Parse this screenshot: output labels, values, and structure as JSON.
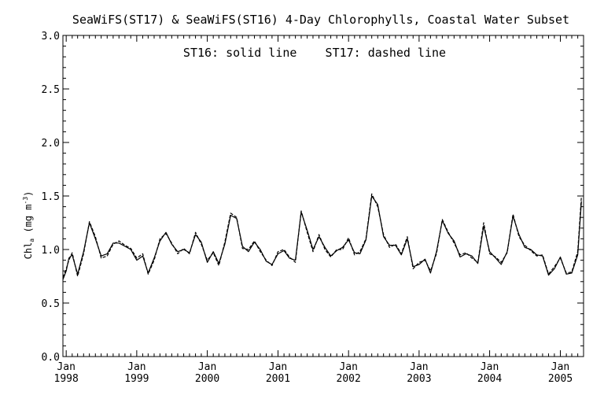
{
  "chart_data": {
    "type": "line",
    "title": "SeaWiFS(ST17) & SeaWiFS(ST16) 4-Day Chlorophylls, Coastal Water Subset",
    "annotation": "ST16: solid line    ST17: dashed line",
    "ylabel": "Chl_a (mg m^-3)",
    "ylim": [
      0.0,
      3.0
    ],
    "xlim": [
      "1997-12-15",
      "2005-05-01"
    ],
    "y_ticks": [
      "0.0",
      "0.5",
      "1.0",
      "1.5",
      "2.0",
      "2.5",
      "3.0"
    ],
    "x_ticks": [
      {
        "month": "Jan",
        "year": "1998",
        "date": "1998-01-01"
      },
      {
        "month": "Jan",
        "year": "1999",
        "date": "1999-01-01"
      },
      {
        "month": "Jan",
        "year": "2000",
        "date": "2000-01-01"
      },
      {
        "month": "Jan",
        "year": "2001",
        "date": "2001-01-01"
      },
      {
        "month": "Jan",
        "year": "2002",
        "date": "2002-01-01"
      },
      {
        "month": "Jan",
        "year": "2003",
        "date": "2003-01-01"
      },
      {
        "month": "Jan",
        "year": "2004",
        "date": "2004-01-01"
      },
      {
        "month": "Jan",
        "year": "2005",
        "date": "2005-01-01"
      }
    ],
    "series": [
      {
        "name": "ST16",
        "style": "solid",
        "points": [
          [
            "1997-12-15",
            0.72
          ],
          [
            "1998-01-01",
            0.8
          ],
          [
            "1998-01-15",
            0.92
          ],
          [
            "1998-02-01",
            0.95
          ],
          [
            "1998-03-01",
            0.77
          ],
          [
            "1998-04-01",
            0.98
          ],
          [
            "1998-05-01",
            1.25
          ],
          [
            "1998-06-01",
            1.1
          ],
          [
            "1998-07-01",
            0.94
          ],
          [
            "1998-08-01",
            0.96
          ],
          [
            "1998-09-01",
            1.06
          ],
          [
            "1998-10-01",
            1.06
          ],
          [
            "1998-11-01",
            1.03
          ],
          [
            "1998-12-01",
            1.0
          ],
          [
            "1999-01-01",
            0.9
          ],
          [
            "1999-02-01",
            0.94
          ],
          [
            "1999-03-01",
            0.78
          ],
          [
            "1999-04-01",
            0.92
          ],
          [
            "1999-05-01",
            1.08
          ],
          [
            "1999-06-01",
            1.16
          ],
          [
            "1999-07-01",
            1.05
          ],
          [
            "1999-08-01",
            0.98
          ],
          [
            "1999-09-01",
            1.0
          ],
          [
            "1999-10-01",
            0.97
          ],
          [
            "1999-11-01",
            1.14
          ],
          [
            "1999-12-01",
            1.07
          ],
          [
            "2000-01-01",
            0.88
          ],
          [
            "2000-02-01",
            0.98
          ],
          [
            "2000-03-01",
            0.87
          ],
          [
            "2000-04-01",
            1.05
          ],
          [
            "2000-05-01",
            1.32
          ],
          [
            "2000-06-01",
            1.29
          ],
          [
            "2000-07-01",
            1.03
          ],
          [
            "2000-08-01",
            0.98
          ],
          [
            "2000-09-01",
            1.07
          ],
          [
            "2000-10-01",
            1.0
          ],
          [
            "2000-11-01",
            0.89
          ],
          [
            "2000-12-01",
            0.86
          ],
          [
            "2001-01-01",
            0.96
          ],
          [
            "2001-02-01",
            0.99
          ],
          [
            "2001-03-01",
            0.92
          ],
          [
            "2001-04-01",
            0.9
          ],
          [
            "2001-05-01",
            1.35
          ],
          [
            "2001-06-01",
            1.18
          ],
          [
            "2001-07-01",
            1.0
          ],
          [
            "2001-08-01",
            1.12
          ],
          [
            "2001-09-01",
            1.02
          ],
          [
            "2001-10-01",
            0.94
          ],
          [
            "2001-11-01",
            0.99
          ],
          [
            "2001-12-01",
            1.02
          ],
          [
            "2002-01-01",
            1.09
          ],
          [
            "2002-02-01",
            0.97
          ],
          [
            "2002-03-01",
            0.96
          ],
          [
            "2002-04-01",
            1.09
          ],
          [
            "2002-05-01",
            1.5
          ],
          [
            "2002-06-01",
            1.42
          ],
          [
            "2002-07-01",
            1.12
          ],
          [
            "2002-08-01",
            1.04
          ],
          [
            "2002-09-01",
            1.04
          ],
          [
            "2002-10-01",
            0.95
          ],
          [
            "2002-11-01",
            1.1
          ],
          [
            "2002-12-01",
            0.84
          ],
          [
            "2003-01-01",
            0.86
          ],
          [
            "2003-02-01",
            0.91
          ],
          [
            "2003-03-01",
            0.78
          ],
          [
            "2003-04-01",
            0.98
          ],
          [
            "2003-05-01",
            1.27
          ],
          [
            "2003-06-01",
            1.15
          ],
          [
            "2003-07-01",
            1.08
          ],
          [
            "2003-08-01",
            0.93
          ],
          [
            "2003-09-01",
            0.96
          ],
          [
            "2003-10-01",
            0.94
          ],
          [
            "2003-11-01",
            0.87
          ],
          [
            "2003-12-01",
            1.22
          ],
          [
            "2004-01-01",
            0.98
          ],
          [
            "2004-02-01",
            0.92
          ],
          [
            "2004-03-01",
            0.86
          ],
          [
            "2004-04-01",
            0.98
          ],
          [
            "2004-05-01",
            1.31
          ],
          [
            "2004-06-01",
            1.14
          ],
          [
            "2004-07-01",
            1.02
          ],
          [
            "2004-08-01",
            1.0
          ],
          [
            "2004-09-01",
            0.95
          ],
          [
            "2004-10-01",
            0.94
          ],
          [
            "2004-11-01",
            0.76
          ],
          [
            "2004-12-01",
            0.82
          ],
          [
            "2005-01-01",
            0.93
          ],
          [
            "2005-02-01",
            0.77
          ],
          [
            "2005-03-01",
            0.78
          ],
          [
            "2005-04-01",
            0.95
          ],
          [
            "2005-04-20",
            1.45
          ]
        ]
      },
      {
        "name": "ST17",
        "style": "dashed",
        "points": [
          [
            "1997-12-15",
            0.74
          ],
          [
            "1998-01-01",
            0.82
          ],
          [
            "1998-01-15",
            0.9
          ],
          [
            "1998-02-01",
            0.97
          ],
          [
            "1998-03-01",
            0.75
          ],
          [
            "1998-04-01",
            0.96
          ],
          [
            "1998-05-01",
            1.26
          ],
          [
            "1998-06-01",
            1.12
          ],
          [
            "1998-07-01",
            0.92
          ],
          [
            "1998-08-01",
            0.94
          ],
          [
            "1998-09-01",
            1.05
          ],
          [
            "1998-10-01",
            1.08
          ],
          [
            "1998-11-01",
            1.04
          ],
          [
            "1998-12-01",
            1.01
          ],
          [
            "1999-01-01",
            0.92
          ],
          [
            "1999-02-01",
            0.96
          ],
          [
            "1999-03-01",
            0.77
          ],
          [
            "1999-04-01",
            0.9
          ],
          [
            "1999-05-01",
            1.1
          ],
          [
            "1999-06-01",
            1.15
          ],
          [
            "1999-07-01",
            1.06
          ],
          [
            "1999-08-01",
            0.96
          ],
          [
            "1999-09-01",
            1.01
          ],
          [
            "1999-10-01",
            0.96
          ],
          [
            "1999-11-01",
            1.16
          ],
          [
            "1999-12-01",
            1.05
          ],
          [
            "2000-01-01",
            0.9
          ],
          [
            "2000-02-01",
            0.97
          ],
          [
            "2000-03-01",
            0.85
          ],
          [
            "2000-04-01",
            1.07
          ],
          [
            "2000-05-01",
            1.34
          ],
          [
            "2000-06-01",
            1.3
          ],
          [
            "2000-07-01",
            1.01
          ],
          [
            "2000-08-01",
            1.0
          ],
          [
            "2000-09-01",
            1.08
          ],
          [
            "2000-10-01",
            0.98
          ],
          [
            "2000-11-01",
            0.9
          ],
          [
            "2000-12-01",
            0.85
          ],
          [
            "2001-01-01",
            0.98
          ],
          [
            "2001-02-01",
            1.0
          ],
          [
            "2001-03-01",
            0.93
          ],
          [
            "2001-04-01",
            0.88
          ],
          [
            "2001-05-01",
            1.36
          ],
          [
            "2001-06-01",
            1.16
          ],
          [
            "2001-07-01",
            0.98
          ],
          [
            "2001-08-01",
            1.14
          ],
          [
            "2001-09-01",
            1.0
          ],
          [
            "2001-10-01",
            0.93
          ],
          [
            "2001-11-01",
            1.0
          ],
          [
            "2001-12-01",
            1.0
          ],
          [
            "2002-01-01",
            1.11
          ],
          [
            "2002-02-01",
            0.95
          ],
          [
            "2002-03-01",
            0.98
          ],
          [
            "2002-04-01",
            1.1
          ],
          [
            "2002-05-01",
            1.52
          ],
          [
            "2002-06-01",
            1.4
          ],
          [
            "2002-07-01",
            1.14
          ],
          [
            "2002-08-01",
            1.02
          ],
          [
            "2002-09-01",
            1.05
          ],
          [
            "2002-10-01",
            0.96
          ],
          [
            "2002-11-01",
            1.12
          ],
          [
            "2002-12-01",
            0.82
          ],
          [
            "2003-01-01",
            0.88
          ],
          [
            "2003-02-01",
            0.9
          ],
          [
            "2003-03-01",
            0.8
          ],
          [
            "2003-04-01",
            0.96
          ],
          [
            "2003-05-01",
            1.28
          ],
          [
            "2003-06-01",
            1.16
          ],
          [
            "2003-07-01",
            1.06
          ],
          [
            "2003-08-01",
            0.95
          ],
          [
            "2003-09-01",
            0.97
          ],
          [
            "2003-10-01",
            0.92
          ],
          [
            "2003-11-01",
            0.88
          ],
          [
            "2003-12-01",
            1.25
          ],
          [
            "2004-01-01",
            0.96
          ],
          [
            "2004-02-01",
            0.93
          ],
          [
            "2004-03-01",
            0.88
          ],
          [
            "2004-04-01",
            0.97
          ],
          [
            "2004-05-01",
            1.33
          ],
          [
            "2004-06-01",
            1.12
          ],
          [
            "2004-07-01",
            1.04
          ],
          [
            "2004-08-01",
            0.99
          ],
          [
            "2004-09-01",
            0.94
          ],
          [
            "2004-10-01",
            0.95
          ],
          [
            "2004-11-01",
            0.77
          ],
          [
            "2004-12-01",
            0.84
          ],
          [
            "2005-01-01",
            0.92
          ],
          [
            "2005-02-01",
            0.78
          ],
          [
            "2005-03-01",
            0.79
          ],
          [
            "2005-04-01",
            0.98
          ],
          [
            "2005-04-20",
            1.5
          ]
        ]
      }
    ]
  }
}
